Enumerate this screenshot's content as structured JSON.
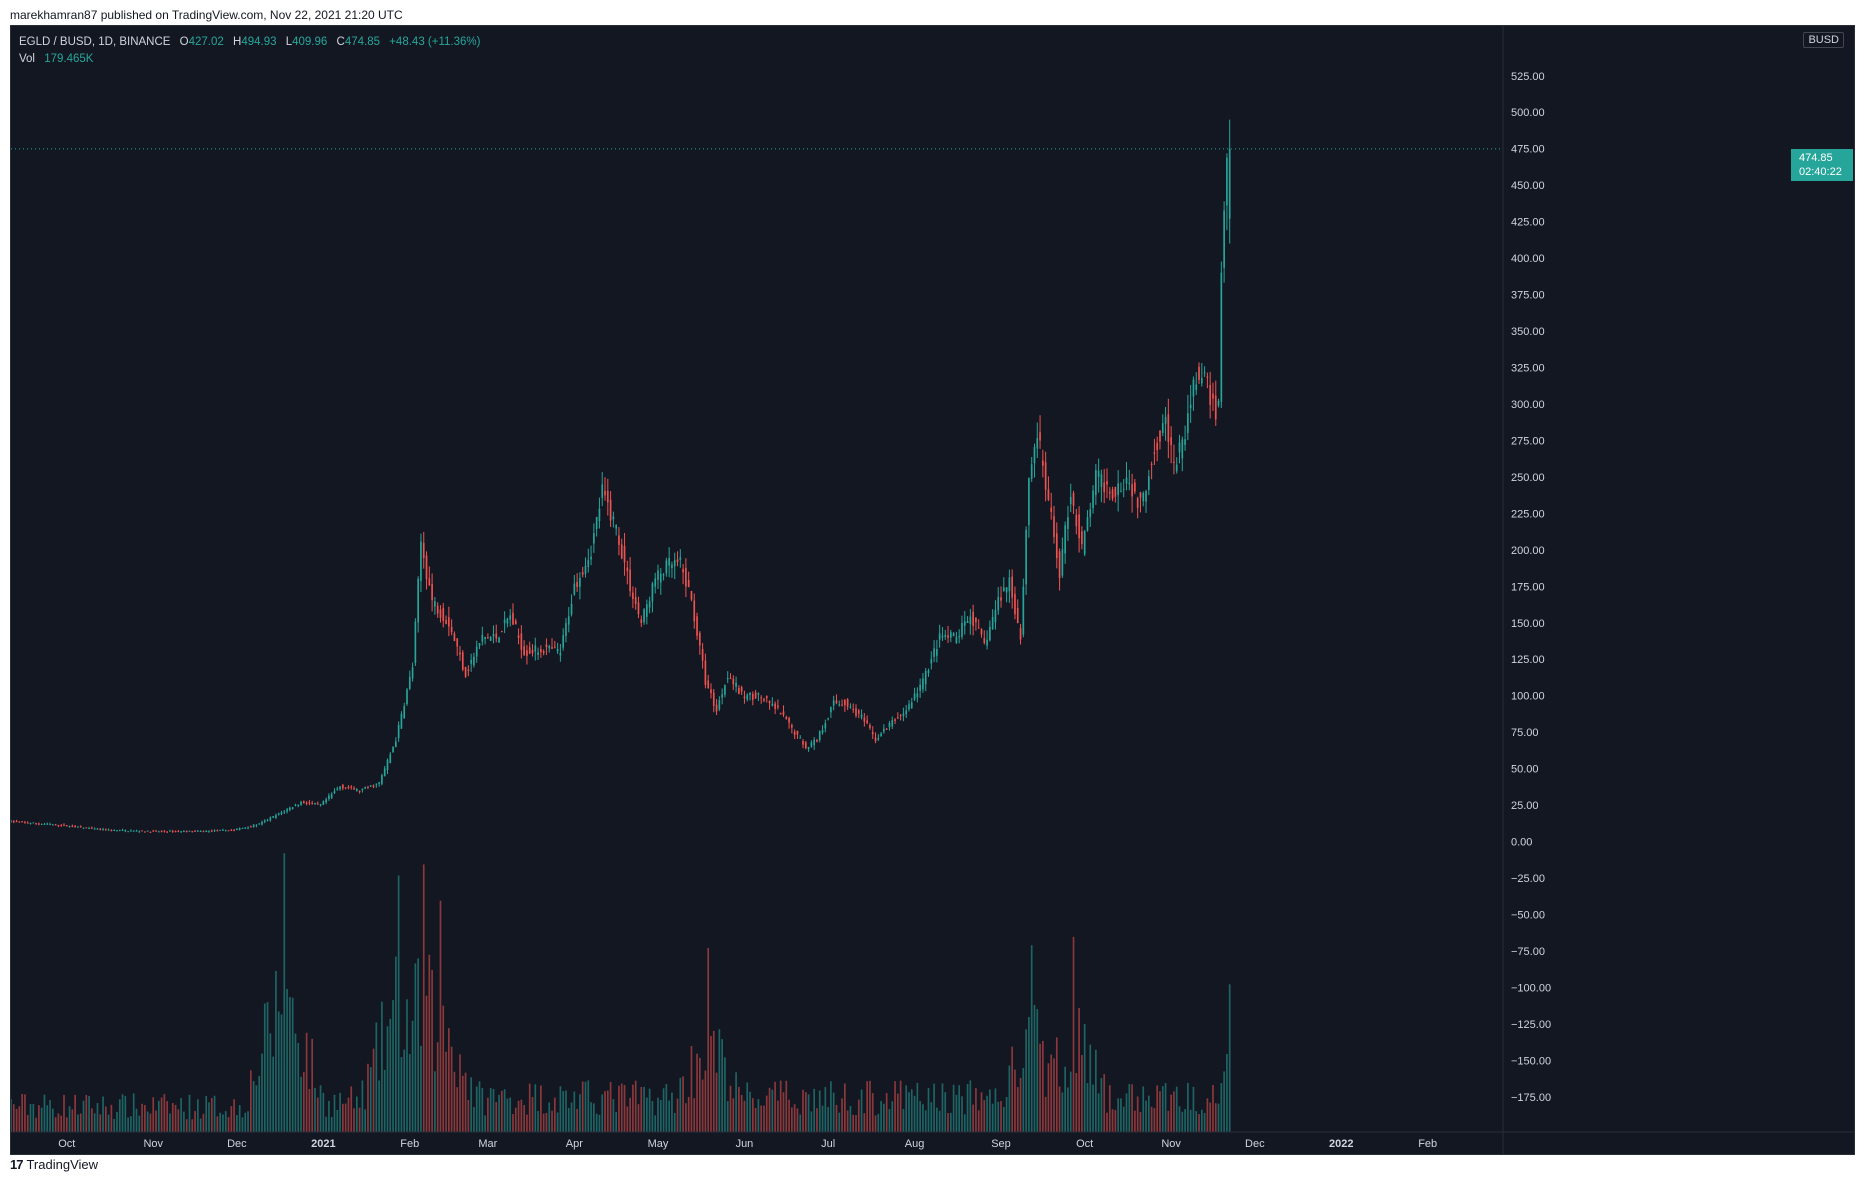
{
  "publisher_line": "marekhamran87 published on TradingView.com, Nov 22, 2021 21:20 UTC",
  "footer_brand": "TradingView",
  "footer_logo_glyph": "17",
  "legend": {
    "symbol": "EGLD / BUSD, 1D, BINANCE",
    "o_label": "O",
    "o_value": "427.02",
    "h_label": "H",
    "h_value": "494.93",
    "l_label": "L",
    "l_value": "409.96",
    "c_label": "C",
    "c_value": "474.85",
    "change": "+48.43 (+11.36%)",
    "vol_label": "Vol",
    "vol_value": "179.465K"
  },
  "axis_currency_label": "BUSD",
  "last_price_tag": {
    "price": "474.85",
    "countdown": "02:40:22"
  },
  "colors": {
    "background": "#131722",
    "up": "#26a69a",
    "down": "#ef5350",
    "text": "#d1d4dc",
    "grid": "#1e222d"
  },
  "chart_data": {
    "type": "candlestick",
    "symbol": "EGLD / BUSD",
    "interval": "1D",
    "ylim": [
      -195,
      555
    ],
    "y_ticks": [
      "525.00",
      "500.00",
      "475.00",
      "450.00",
      "425.00",
      "400.00",
      "375.00",
      "350.00",
      "325.00",
      "300.00",
      "275.00",
      "250.00",
      "225.00",
      "200.00",
      "175.00",
      "150.00",
      "125.00",
      "100.00",
      "75.00",
      "50.00",
      "25.00",
      "0.00",
      "−25.00",
      "−50.00",
      "−75.00",
      "−100.00",
      "−125.00",
      "−150.00",
      "−175.00"
    ],
    "y_tick_values": [
      525,
      500,
      475,
      450,
      425,
      400,
      375,
      350,
      325,
      300,
      275,
      250,
      225,
      200,
      175,
      150,
      125,
      100,
      75,
      50,
      25,
      0,
      -25,
      -50,
      -75,
      -100,
      -125,
      -150,
      -175
    ],
    "x_ticks": [
      {
        "label": "Oct",
        "date": "2020-10-01"
      },
      {
        "label": "Nov",
        "date": "2020-11-01"
      },
      {
        "label": "Dec",
        "date": "2020-12-01"
      },
      {
        "label": "2021",
        "date": "2021-01-01"
      },
      {
        "label": "Feb",
        "date": "2021-02-01"
      },
      {
        "label": "Mar",
        "date": "2021-03-01"
      },
      {
        "label": "Apr",
        "date": "2021-04-01"
      },
      {
        "label": "May",
        "date": "2021-05-01"
      },
      {
        "label": "Jun",
        "date": "2021-06-01"
      },
      {
        "label": "Jul",
        "date": "2021-07-01"
      },
      {
        "label": "Aug",
        "date": "2021-08-01"
      },
      {
        "label": "Sep",
        "date": "2021-09-01"
      },
      {
        "label": "Oct",
        "date": "2021-10-01"
      },
      {
        "label": "Nov",
        "date": "2021-11-01"
      },
      {
        "label": "Dec",
        "date": "2021-12-01"
      },
      {
        "label": "2022",
        "date": "2022-01-01"
      },
      {
        "label": "Feb",
        "date": "2022-02-01"
      }
    ],
    "x_range": [
      "2020-09-11",
      "2022-02-28"
    ],
    "last_close": 474.85,
    "price_path": [
      [
        "2020-09-11",
        14
      ],
      [
        "2020-10-01",
        11
      ],
      [
        "2020-10-15",
        8
      ],
      [
        "2020-11-01",
        7
      ],
      [
        "2020-11-20",
        7
      ],
      [
        "2020-12-01",
        8
      ],
      [
        "2020-12-10",
        12
      ],
      [
        "2020-12-18",
        20
      ],
      [
        "2020-12-25",
        27
      ],
      [
        "2021-01-01",
        25
      ],
      [
        "2021-01-08",
        38
      ],
      [
        "2021-01-15",
        35
      ],
      [
        "2021-01-22",
        40
      ],
      [
        "2021-01-28",
        70
      ],
      [
        "2021-02-03",
        120
      ],
      [
        "2021-02-06",
        205
      ],
      [
        "2021-02-10",
        165
      ],
      [
        "2021-02-16",
        150
      ],
      [
        "2021-02-22",
        115
      ],
      [
        "2021-02-28",
        140
      ],
      [
        "2021-03-05",
        140
      ],
      [
        "2021-03-10",
        155
      ],
      [
        "2021-03-15",
        130
      ],
      [
        "2021-03-22",
        132
      ],
      [
        "2021-03-28",
        130
      ],
      [
        "2021-04-02",
        175
      ],
      [
        "2021-04-08",
        200
      ],
      [
        "2021-04-12",
        240
      ],
      [
        "2021-04-17",
        215
      ],
      [
        "2021-04-22",
        175
      ],
      [
        "2021-04-26",
        150
      ],
      [
        "2021-05-01",
        180
      ],
      [
        "2021-05-06",
        190
      ],
      [
        "2021-05-10",
        190
      ],
      [
        "2021-05-14",
        165
      ],
      [
        "2021-05-19",
        110
      ],
      [
        "2021-05-23",
        90
      ],
      [
        "2021-05-27",
        115
      ],
      [
        "2021-06-01",
        100
      ],
      [
        "2021-06-07",
        100
      ],
      [
        "2021-06-14",
        90
      ],
      [
        "2021-06-20",
        75
      ],
      [
        "2021-06-24",
        65
      ],
      [
        "2021-06-28",
        70
      ],
      [
        "2021-07-04",
        95
      ],
      [
        "2021-07-08",
        95
      ],
      [
        "2021-07-14",
        85
      ],
      [
        "2021-07-19",
        70
      ],
      [
        "2021-07-24",
        80
      ],
      [
        "2021-07-30",
        90
      ],
      [
        "2021-08-05",
        110
      ],
      [
        "2021-08-11",
        140
      ],
      [
        "2021-08-17",
        140
      ],
      [
        "2021-08-22",
        155
      ],
      [
        "2021-08-27",
        135
      ],
      [
        "2021-09-01",
        165
      ],
      [
        "2021-09-05",
        180
      ],
      [
        "2021-09-09",
        140
      ],
      [
        "2021-09-12",
        250
      ],
      [
        "2021-09-15",
        280
      ],
      [
        "2021-09-20",
        220
      ],
      [
        "2021-09-23",
        185
      ],
      [
        "2021-09-27",
        240
      ],
      [
        "2021-10-01",
        200
      ],
      [
        "2021-10-06",
        250
      ],
      [
        "2021-10-12",
        240
      ],
      [
        "2021-10-17",
        250
      ],
      [
        "2021-10-22",
        230
      ],
      [
        "2021-10-27",
        270
      ],
      [
        "2021-10-31",
        290
      ],
      [
        "2021-11-03",
        255
      ],
      [
        "2021-11-07",
        280
      ],
      [
        "2021-11-11",
        320
      ],
      [
        "2021-11-14",
        315
      ],
      [
        "2021-11-18",
        295
      ],
      [
        "2021-11-19",
        305
      ],
      [
        "2021-11-20",
        390
      ],
      [
        "2021-11-21",
        427.02
      ],
      [
        "2021-11-22",
        474.85
      ]
    ],
    "last_candle": {
      "date": "2021-11-22",
      "open": 427.02,
      "high": 494.93,
      "low": 409.96,
      "close": 474.85
    },
    "volume_last": "179.465K",
    "volume_peaks": [
      [
        "2020-12-18",
        1.0
      ],
      [
        "2021-02-06",
        0.96
      ],
      [
        "2021-01-28",
        0.92
      ],
      [
        "2021-02-12",
        0.83
      ],
      [
        "2021-05-19",
        0.66
      ],
      [
        "2021-09-12",
        0.67
      ],
      [
        "2021-09-27",
        0.7
      ],
      [
        "2021-11-22",
        0.53
      ]
    ]
  }
}
